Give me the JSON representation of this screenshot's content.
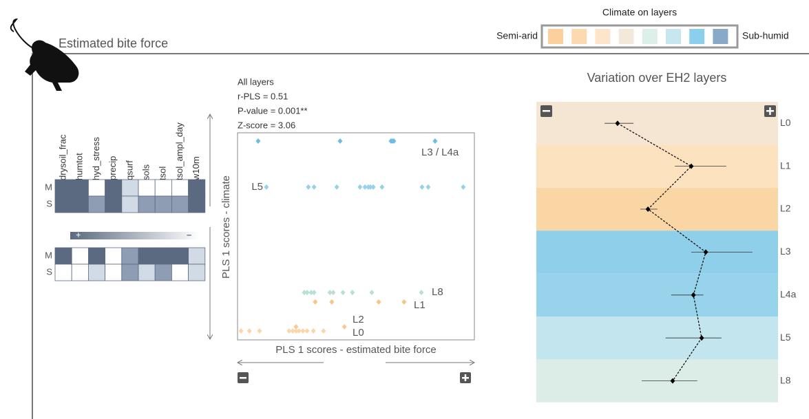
{
  "header": {
    "title": "Estimated bite force"
  },
  "legend": {
    "title": "Climate on layers",
    "left": "Semi-arid",
    "right": "Sub-humid",
    "colors": [
      "#fbd09c",
      "#fcd9b0",
      "#fde5cc",
      "#f3e8da",
      "#ddefe9",
      "#c6e7ef",
      "#8ccfec",
      "#8aa8c8"
    ]
  },
  "heatmaps": {
    "columns": [
      "drysoil_frac",
      "humtot",
      "hyd_stress",
      "precip",
      "qsurf",
      "sols",
      "tsol",
      "tsol_ampl_day",
      "w10m"
    ],
    "rows": [
      "M",
      "S"
    ],
    "shades": [
      "#ffffff",
      "#d2dae5",
      "#8e9db3",
      "#5b6a80"
    ],
    "gradient": {
      "plus": "+",
      "minus": "–"
    },
    "matrices": [
      [
        [
          3,
          3,
          0,
          3,
          1,
          0,
          0,
          0,
          3
        ],
        [
          3,
          3,
          2,
          3,
          1,
          2,
          2,
          2,
          3
        ]
      ],
      [
        [
          3,
          0,
          3,
          0,
          2,
          3,
          3,
          3,
          1
        ],
        [
          0,
          0,
          1,
          0,
          2,
          1,
          2,
          0,
          1
        ]
      ]
    ]
  },
  "scatter": {
    "stats": [
      "All layers",
      "r-PLS = 0.51",
      "P-value = 0.001**",
      "Z-score = 3.06"
    ],
    "xlabel": "PLS 1 scores - estimated bite force",
    "ylabel": "PLS 1 scores - climate",
    "xlim": [
      0,
      100
    ],
    "ylim": [
      0,
      100
    ],
    "groups": [
      {
        "name": "L3 / L4a",
        "color": "#6bbde3",
        "y": 96,
        "x": [
          8.7,
          43.3,
          64.8,
          65.4,
          66,
          83.4
        ]
      },
      {
        "name": "L5",
        "color": "#96d3e8",
        "y": 73.8,
        "x": [
          12.2,
          29.9,
          32.3,
          41.9,
          51.7,
          53.8,
          55.2,
          56.1,
          57.3,
          61,
          77.9,
          80.5,
          95.3
        ]
      },
      {
        "name": "L8",
        "color": "#b9e0d4",
        "y": 22.9,
        "x": [
          28.2,
          29.4,
          31.1,
          32.3,
          39,
          40.4,
          44.5,
          48.5,
          56.7,
          77.6
        ]
      },
      {
        "name": "L1",
        "color": "#f7c48a",
        "y": 18.3,
        "x": [
          32.8,
          39.8,
          59.6,
          70.3
        ]
      },
      {
        "name": "L2",
        "color": "#f8cb95",
        "y": 6.3,
        "x": [
          24.7,
          45.1
        ]
      },
      {
        "name": "L0",
        "color": "#fad6aa",
        "y": 4.3,
        "x": [
          1.5,
          5,
          9.3,
          21.8,
          23.3,
          24.7,
          25.9,
          27.6,
          29.4,
          32,
          36.3
        ]
      }
    ]
  },
  "variation": {
    "title": "Variation over EH2 layers",
    "xlim": [
      0,
      100
    ],
    "layers": [
      {
        "name": "L0",
        "color": "#f5e6d3",
        "mean": 33.6,
        "low": 28.2,
        "high": 40.2
      },
      {
        "name": "L1",
        "color": "#fde2c0",
        "mean": 64.1,
        "low": 57.3,
        "high": 78.6
      },
      {
        "name": "L2",
        "color": "#fbd6a5",
        "mean": 46.2,
        "low": 43.0,
        "high": 50.1
      },
      {
        "name": "L3",
        "color": "#8fcfea",
        "mean": 70.1,
        "low": 64.1,
        "high": 89.4
      },
      {
        "name": "L4a",
        "color": "#97d3ea",
        "mean": 65.0,
        "low": 55.8,
        "high": 69.1
      },
      {
        "name": "L5",
        "color": "#c3e5ee",
        "mean": 68.4,
        "low": 53.5,
        "high": 76.6
      },
      {
        "name": "L8",
        "color": "#dcede7",
        "mean": 56.4,
        "low": 43.6,
        "high": 66.6
      }
    ]
  }
}
